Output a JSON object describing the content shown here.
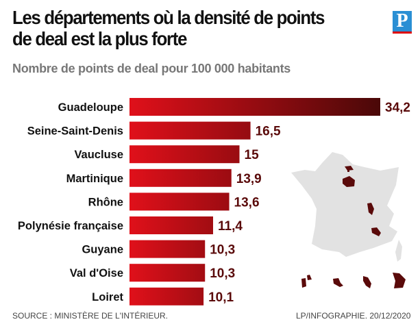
{
  "header": {
    "title": "Les départements où la densité de points de deal est la plus forte",
    "logo": "P"
  },
  "chart_data": {
    "type": "bar",
    "orientation": "horizontal",
    "title": "Les départements où la densité de points de deal est la plus forte",
    "subtitle": "Nombre de points de deal pour 100 000  habitants",
    "categories": [
      "Guadeloupe",
      "Seine-Saint-Denis",
      "Vaucluse",
      "Martinique",
      "Rhône",
      "Polynésie française",
      "Guyane",
      "Val d'Oise",
      "Loiret"
    ],
    "values": [
      34.2,
      16.5,
      15,
      13.9,
      13.6,
      11.4,
      10.3,
      10.3,
      10.1
    ],
    "value_labels": [
      "34,2",
      "16,5",
      "15",
      "13,9",
      "13,6",
      "11,4",
      "10,3",
      "10,3",
      "10,1"
    ],
    "xlim": [
      0,
      34.2
    ],
    "grid": false,
    "colors": {
      "bar_start": "#e0101a",
      "bar_end": "#4a0808",
      "value": "#5a0a0a",
      "map": "#e2e2e2",
      "highlight": "#5a0a0a"
    }
  },
  "footer": {
    "source": "SOURCE : MINISTÈRE DE L'INTÉRIEUR.",
    "credit": "LP/INFOGRAPHIE.  20/12/2020"
  }
}
